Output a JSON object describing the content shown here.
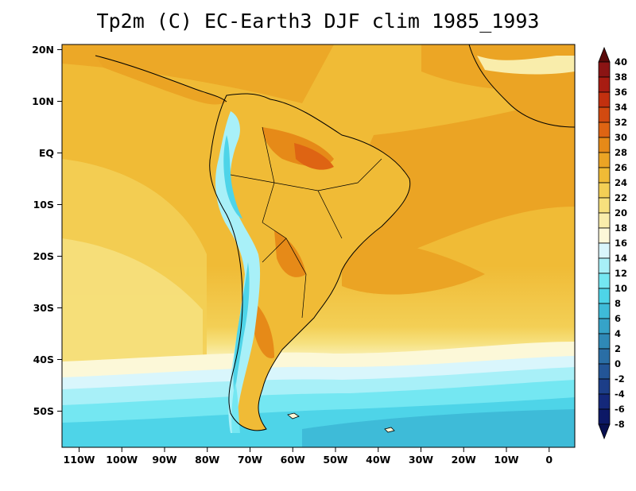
{
  "title": "Tp2m (C) EC-Earth3 DJF clim 1985_1993",
  "map": {
    "lon_range": [
      -114,
      6
    ],
    "lat_range": [
      -57,
      21
    ],
    "lat_labels": [
      {
        "lat": 20,
        "text": "20N"
      },
      {
        "lat": 10,
        "text": "10N"
      },
      {
        "lat": 0,
        "text": "EQ"
      },
      {
        "lat": -10,
        "text": "10S"
      },
      {
        "lat": -20,
        "text": "20S"
      },
      {
        "lat": -30,
        "text": "30S"
      },
      {
        "lat": -40,
        "text": "40S"
      },
      {
        "lat": -50,
        "text": "50S"
      }
    ],
    "lon_labels": [
      {
        "lon": -110,
        "text": "110W"
      },
      {
        "lon": -100,
        "text": "100W"
      },
      {
        "lon": -90,
        "text": "90W"
      },
      {
        "lon": -80,
        "text": "80W"
      },
      {
        "lon": -70,
        "text": "70W"
      },
      {
        "lon": -60,
        "text": "60W"
      },
      {
        "lon": -50,
        "text": "50W"
      },
      {
        "lon": -40,
        "text": "40W"
      },
      {
        "lon": -30,
        "text": "30W"
      },
      {
        "lon": -20,
        "text": "20W"
      },
      {
        "lon": -10,
        "text": "10W"
      },
      {
        "lon": 0,
        "text": "0"
      }
    ]
  },
  "colorbar": {
    "labels": [
      "40",
      "38",
      "36",
      "34",
      "32",
      "30",
      "28",
      "26",
      "24",
      "22",
      "20",
      "18",
      "16",
      "14",
      "12",
      "10",
      "8",
      "6",
      "4",
      "2",
      "0",
      "-2",
      "-4",
      "-6",
      "-8"
    ],
    "colors": [
      "#5a0a0a",
      "#8b1414",
      "#a81c12",
      "#c2300f",
      "#d24a10",
      "#de6413",
      "#e68a18",
      "#eba424",
      "#f0bb36",
      "#f3cf55",
      "#f6e07d",
      "#f9edab",
      "#fcf8d8",
      "#d9f6fc",
      "#a8f0f8",
      "#74e7f2",
      "#4ed4e8",
      "#3ebbd8",
      "#36a3c8",
      "#2f89b6",
      "#2a6ea5",
      "#235596",
      "#1c3e88",
      "#14287a",
      "#0c1866",
      "#081050"
    ]
  }
}
